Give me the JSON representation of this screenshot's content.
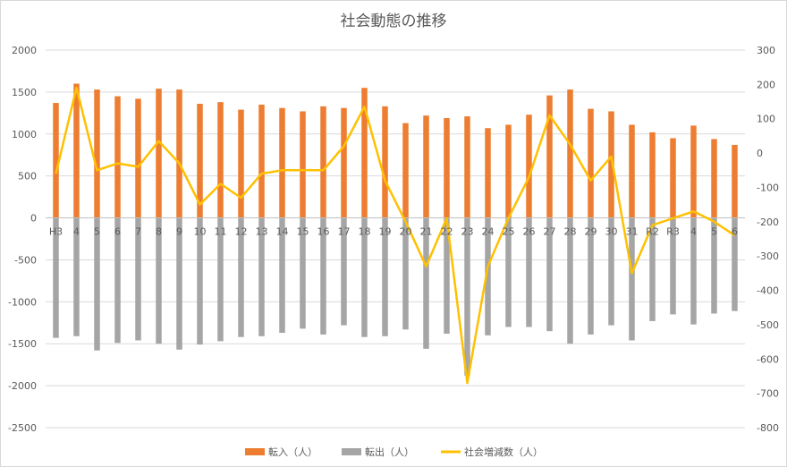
{
  "chart_data": {
    "type": "bar",
    "title": "社会動態の推移",
    "categories": [
      "H3",
      "4",
      "5",
      "6",
      "7",
      "8",
      "9",
      "10",
      "11",
      "12",
      "13",
      "14",
      "15",
      "16",
      "17",
      "18",
      "19",
      "20",
      "21",
      "22",
      "23",
      "24",
      "25",
      "26",
      "27",
      "28",
      "29",
      "30",
      "31",
      "R2",
      "R3",
      "4",
      "5",
      "6"
    ],
    "left_axis": {
      "min": -2500,
      "max": 2000,
      "step": 500,
      "ticks": [
        "2000",
        "1500",
        "1000",
        "500",
        "0",
        "-500",
        "-1000",
        "-1500",
        "-2000",
        "-2500"
      ]
    },
    "right_axis": {
      "min": -800,
      "max": 300,
      "step": 100,
      "ticks": [
        "300",
        "200",
        "100",
        "0",
        "-100",
        "-200",
        "-300",
        "-400",
        "-500",
        "-600",
        "-700",
        "-800"
      ]
    },
    "series": [
      {
        "name": "転入（人）",
        "type": "bar",
        "axis": "left",
        "color": "#ed7d31",
        "values": [
          1370,
          1600,
          1530,
          1450,
          1420,
          1540,
          1530,
          1360,
          1380,
          1290,
          1350,
          1310,
          1270,
          1330,
          1310,
          1550,
          1330,
          1130,
          1220,
          1190,
          1210,
          1070,
          1110,
          1230,
          1460,
          1530,
          1300,
          1270,
          1110,
          1020,
          950,
          1100,
          940,
          870
        ]
      },
      {
        "name": "転出（人）",
        "type": "bar",
        "axis": "left",
        "color": "#a5a5a5",
        "values": [
          -1430,
          -1410,
          -1580,
          -1490,
          -1460,
          -1500,
          -1570,
          -1510,
          -1470,
          -1420,
          -1410,
          -1370,
          -1320,
          -1390,
          -1280,
          -1420,
          -1410,
          -1330,
          -1560,
          -1380,
          -1880,
          -1400,
          -1300,
          -1300,
          -1350,
          -1500,
          -1390,
          -1280,
          -1460,
          -1230,
          -1150,
          -1270,
          -1140,
          -1110
        ]
      },
      {
        "name": "社会増減数（人）",
        "type": "line",
        "axis": "right",
        "color": "#ffc000",
        "values": [
          -60,
          190,
          -50,
          -30,
          -40,
          35,
          -30,
          -150,
          -90,
          -130,
          -60,
          -50,
          -50,
          -50,
          20,
          135,
          -80,
          -200,
          -330,
          -190,
          -670,
          -330,
          -190,
          -70,
          110,
          25,
          -80,
          -10,
          -350,
          -210,
          -190,
          -170,
          -200,
          -240
        ]
      }
    ],
    "grid": true,
    "legend_position": "bottom"
  }
}
